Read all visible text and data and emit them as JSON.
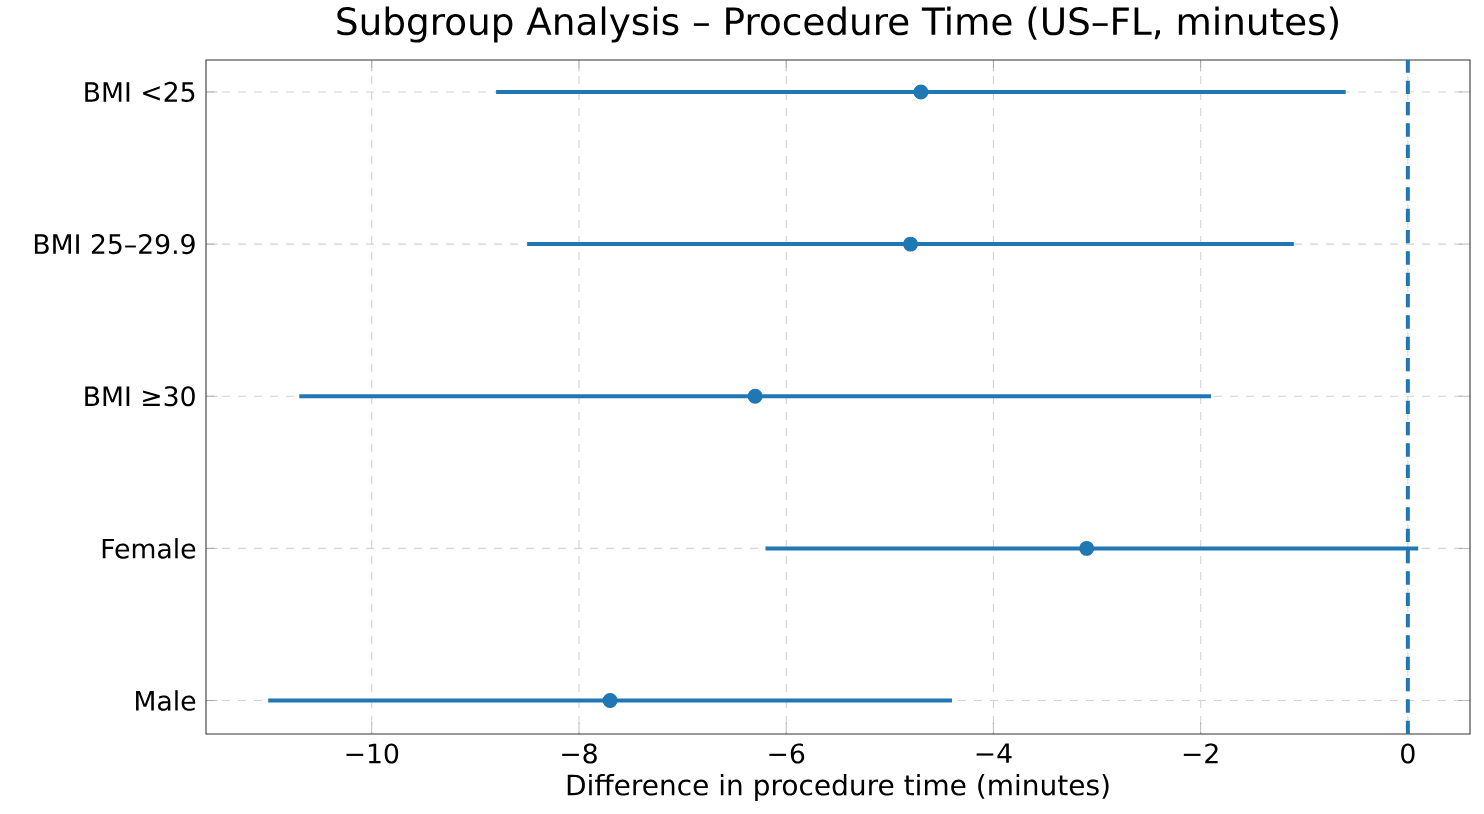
{
  "chart_data": {
    "type": "scatter",
    "orientation": "horizontal",
    "title": "Subgroup Analysis – Procedure Time (US–FL, minutes)",
    "xlabel": "Difference in procedure time (minutes)",
    "categories": [
      "BMI <25",
      "BMI 25–29.9",
      "BMI ≥30",
      "Female",
      "Male"
    ],
    "values": [
      -4.7,
      -4.8,
      -6.3,
      -3.1,
      -7.7
    ],
    "errors": [
      [
        -8.8,
        -0.6
      ],
      [
        -8.5,
        -1.1
      ],
      [
        -10.7,
        -1.9
      ],
      [
        -6.2,
        0.1
      ],
      [
        -11.0,
        -4.4
      ]
    ],
    "color": "#1f77b4",
    "grid": true,
    "xlim": [
      -11.6,
      0.6
    ],
    "xticks": [
      {
        "value": -10,
        "label": "−10"
      },
      {
        "value": -8,
        "label": "−8"
      },
      {
        "value": -6,
        "label": "−6"
      },
      {
        "value": -4,
        "label": "−4"
      },
      {
        "value": -2,
        "label": "−2"
      },
      0
    ],
    "ref_lines": [
      {
        "axis": "x",
        "value": 0,
        "line_style": "dashed"
      }
    ]
  }
}
